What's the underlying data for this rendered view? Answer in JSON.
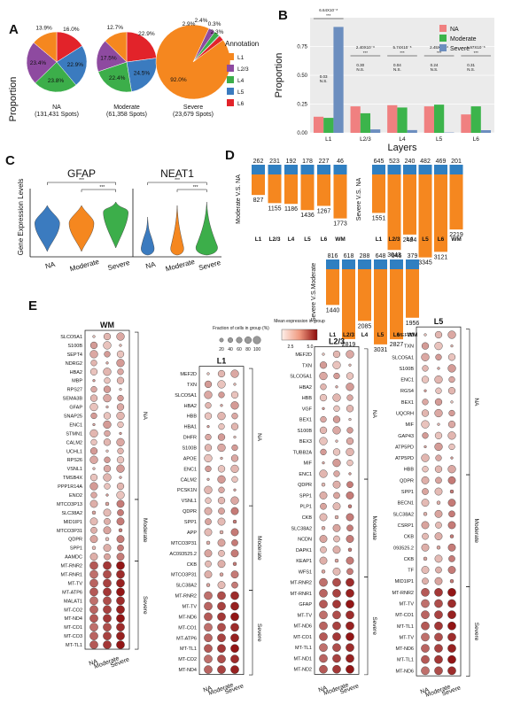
{
  "panel_letters": {
    "A": "A",
    "B": "B",
    "C": "C",
    "D": "D",
    "E": "E"
  },
  "panelA": {
    "ylabel": "Proportion",
    "legend_title": "Annotation",
    "legend_items": [
      "L1",
      "L2/3",
      "L4",
      "L5",
      "L6"
    ],
    "colors": {
      "L1": "#f5871f",
      "L2/3": "#8e4aa0",
      "L4": "#3cae4a",
      "L5": "#3b7bbf",
      "L6": "#e2232a"
    }
  },
  "chart_data": [
    {
      "type": "pie",
      "title": "NA",
      "subtitle": "(131,431 Spots)",
      "labels": [
        "L1",
        "L2/3",
        "L4",
        "L5",
        "L6"
      ],
      "values": [
        13.9,
        23.4,
        23.8,
        22.9,
        16.0
      ],
      "value_labels": [
        "13.9%",
        "23.4%",
        "23.8%",
        "22.9%",
        "16.0%"
      ]
    },
    {
      "type": "pie",
      "title": "Moderate",
      "subtitle": "(61,358 Spots)",
      "labels": [
        "L1",
        "L2/3",
        "L4",
        "L5",
        "L6"
      ],
      "values": [
        12.7,
        17.5,
        22.4,
        24.5,
        22.9
      ],
      "value_labels": [
        "12.7%",
        "17.5%",
        "22.4%",
        "24.5%",
        "22.9%"
      ]
    },
    {
      "type": "pie",
      "title": "Severe",
      "subtitle": "(23,679 Spots)",
      "labels": [
        "L1",
        "L2/3",
        "L4",
        "L5",
        "L6"
      ],
      "values": [
        92.0,
        2.9,
        2.4,
        0.3,
        2.3
      ],
      "value_labels": [
        "92.0%",
        "2.9%",
        "2.4%",
        "0.3%",
        "2.3%"
      ]
    },
    {
      "type": "bar",
      "xlabel": "Layers",
      "ylabel": "Proportion",
      "categories": [
        "L1",
        "L2/3",
        "L4",
        "L5",
        "L6"
      ],
      "ylim": [
        0,
        1.0
      ],
      "yticks": [
        "0.00",
        "0.25",
        "0.50",
        "0.75"
      ],
      "series": [
        {
          "name": "NA",
          "color": "#f08080",
          "values": [
            0.14,
            0.23,
            0.24,
            0.23,
            0.16
          ]
        },
        {
          "name": "Moderate",
          "color": "#3cb44b",
          "values": [
            0.13,
            0.17,
            0.22,
            0.245,
            0.23
          ]
        },
        {
          "name": "Severe",
          "color": "#6c8ebf",
          "values": [
            0.92,
            0.03,
            0.024,
            0.003,
            0.023
          ]
        }
      ],
      "annotations": [
        {
          "category": "L1",
          "top": "6.64X10⁻⁸",
          "mid": "***",
          "low": "0.03",
          "ns": "N.S."
        },
        {
          "category": "L2/3",
          "top": "2.40X10⁻⁸",
          "mid": "***",
          "low": "0.30",
          "ns": "N.S."
        },
        {
          "category": "L4",
          "top": "5.74X10⁻⁸",
          "mid": "***",
          "low": "0.04",
          "ns": "N.S."
        },
        {
          "category": "L5",
          "top": "2.45X10⁻⁸",
          "mid": "***",
          "low": "0.24",
          "ns": "N.S."
        },
        {
          "category": "L6",
          "top": "1.97X10⁻⁸",
          "mid": "***",
          "low": "0.31",
          "ns": "N.S."
        }
      ]
    },
    {
      "type": "bar",
      "title": "Moderate V.S. NA",
      "categories": [
        "L1",
        "L2/3",
        "L4",
        "L5",
        "L6",
        "WM"
      ],
      "series": [
        {
          "name": "up",
          "color": "#2f7fc1",
          "values": [
            262,
            231,
            192,
            178,
            227,
            46
          ]
        },
        {
          "name": "down",
          "color": "#f5871f",
          "values": [
            827,
            1155,
            1186,
            1436,
            1267,
            1773
          ]
        }
      ]
    },
    {
      "type": "bar",
      "title": "Severe V.S. NA",
      "categories": [
        "L1",
        "L2/3",
        "L4",
        "L5",
        "L6",
        "WM"
      ],
      "series": [
        {
          "name": "up",
          "color": "#2f7fc1",
          "values": [
            645,
            523,
            240,
            482,
            469,
            201
          ]
        },
        {
          "name": "down",
          "color": "#f5871f",
          "values": [
            1551,
            3043,
            2424,
            3345,
            3121,
            2219
          ]
        }
      ]
    },
    {
      "type": "bar",
      "title": "Severe V.S.Moderate",
      "categories": [
        "L1",
        "L2/3",
        "L4",
        "L5",
        "L6",
        "WM"
      ],
      "series": [
        {
          "name": "up",
          "color": "#2f7fc1",
          "values": [
            816,
            618,
            288,
            648,
            646,
            379
          ]
        },
        {
          "name": "down",
          "color": "#f5871f",
          "values": [
            1440,
            2819,
            2085,
            3031,
            2827,
            1956
          ]
        }
      ]
    }
  ],
  "panelC": {
    "ylabel": "Gene Expression Levels",
    "plots": [
      {
        "title": "GFAP",
        "groups": [
          "NA",
          "Moderate",
          "Severe"
        ],
        "sig": [
          "***",
          "***"
        ]
      },
      {
        "title": "NEAT1",
        "groups": [
          "NA",
          "Moderate",
          "Severe"
        ],
        "sig": [
          "***",
          "***"
        ]
      }
    ],
    "colors": [
      "#3b7bbf",
      "#f5871f",
      "#3cae4a"
    ]
  },
  "panelE": {
    "size_legend_title": "Fraction of cells in group (%)",
    "size_legend_ticks": [
      "20",
      "40",
      "60",
      "80",
      "100"
    ],
    "color_legend_title": "Mean expression in group",
    "color_legend_ticks": [
      "2.5",
      "5.0"
    ],
    "xlabels": [
      "NA",
      "Moderate",
      "Severe"
    ],
    "group_labels": [
      "NA",
      "Moderate",
      "Severe"
    ],
    "blocks": [
      {
        "title": "WM",
        "genes": [
          "SLCO5A1",
          "S100B",
          "SEPT4",
          "NDRG2",
          "HBA2",
          "MBP",
          "RPS27",
          "SEMA3B",
          "GFAP",
          "SNAP25",
          "ENC1",
          "STMN1",
          "CALM2",
          "UCHL1",
          "RPS26",
          "VSNL1",
          "TMSB4X",
          "PPP1R14A",
          "ENO2",
          "MTCO3P13",
          "SLC38A2",
          "MID1IP1",
          "MTCO3P31",
          "QDPR",
          "SPP1",
          "AAMDC",
          "MT-RNR2",
          "MT-RNR1",
          "MT-TV",
          "MT-ATP6",
          "MALAT1",
          "MT-CO2",
          "MT-ND4",
          "MT-CO1",
          "MT-CO3",
          "MT-TL1"
        ],
        "groups": [
          19,
          7,
          10
        ]
      },
      {
        "title": "L1",
        "genes": [
          "MEF2D",
          "TXN",
          "SLCO5A1",
          "HBA2",
          "HBB",
          "HBA1",
          "DHFR",
          "S100B",
          "APOE",
          "ENC1",
          "CALM2",
          "PCSK1N",
          "VSNL1",
          "QDPR",
          "SPP1",
          "APP",
          "MTCO3P31",
          "AC093525.2",
          "CKB",
          "MTCO3P31",
          "SLC38A2",
          "MT-RNR2",
          "MT-TV",
          "MT-ND6",
          "MT-CO1",
          "MT-ATP6",
          "MT-TL1",
          "MT-CO2",
          "MT-ND4"
        ],
        "groups": [
          13,
          8,
          8
        ]
      },
      {
        "title": "L2/3",
        "genes": [
          "MEF2D",
          "TXN",
          "SLCO5A1",
          "HBA2",
          "HBB",
          "VGF",
          "BEX1",
          "S100B",
          "BEX3",
          "TUBB2A",
          "MIF",
          "ENC1",
          "QDPR",
          "SPP1",
          "PLP1",
          "CKB",
          "SLC38A2",
          "NCDN",
          "DAPK1",
          "KEAP1",
          "WFS1",
          "MT-RNR2",
          "MT-RNR1",
          "GFAP",
          "MT-TV",
          "MT-ND6",
          "MT-CO1",
          "MT-TL1",
          "MT-ND1",
          "MT-ND2"
        ],
        "groups": [
          12,
          9,
          9
        ]
      },
      {
        "title": "L5",
        "genes": [
          "MEF2D",
          "TXN",
          "SLCO5A1",
          "S100B",
          "ENC1",
          "RGS4",
          "BEX1",
          "UQCRH",
          "MIF",
          "GAP43",
          "ATP5PD",
          "ATP5PD",
          "HBB",
          "QDPR",
          "SPP1",
          "BECN1",
          "SLC38A2",
          "CSRP1",
          "CKB",
          "093525.2",
          "CKB",
          "TF",
          "MID1IP1",
          "MT-RNR2",
          "MT-TV",
          "MT-CO1",
          "MT-TL1",
          "MT-TV",
          "MT-ND6",
          "MT-TL1",
          "MT-ND6"
        ],
        "groups": [
          13,
          10,
          8
        ]
      }
    ]
  }
}
